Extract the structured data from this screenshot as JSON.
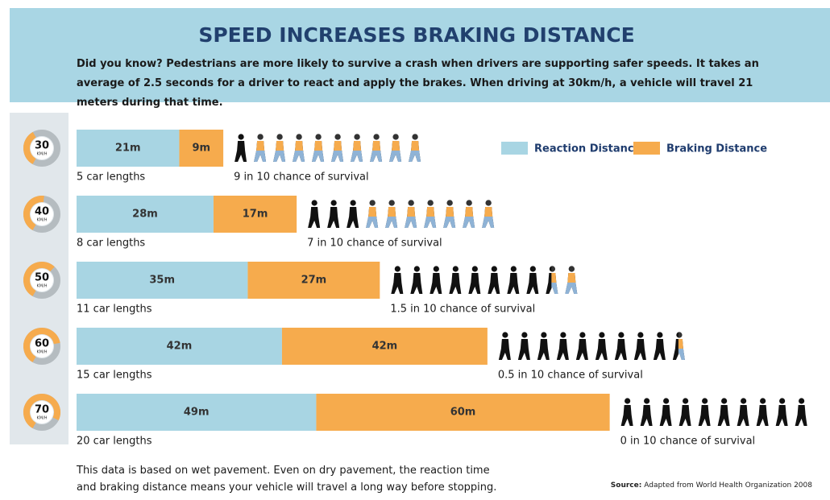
{
  "chart_data": {
    "type": "bar",
    "stacked": true,
    "orientation": "horizontal",
    "title": "SPEED INCREASES BRAKING DISTANCE",
    "subtitle_lead": "Did you know?",
    "subtitle": "Pedestrians are more likely to survive a crash when drivers are supporting safer speeds. It takes an average of 2.5 seconds for a driver to react and apply the brakes. When driving at 30km/h, a vehicle will travel 21 meters during that time.",
    "categories": [
      "30",
      "40",
      "50",
      "60",
      "70"
    ],
    "unit": "KM/H",
    "series": [
      {
        "name": "Reaction Distance",
        "color": "#a8d5e3",
        "values": [
          21,
          28,
          35,
          42,
          49
        ],
        "value_labels": [
          "21m",
          "28m",
          "35m",
          "42m",
          "49m"
        ]
      },
      {
        "name": "Braking Distance",
        "color": "#f6ab4d",
        "values": [
          9,
          17,
          27,
          42,
          60
        ],
        "value_labels": [
          "9m",
          "17m",
          "27m",
          "42m",
          "60m"
        ]
      }
    ],
    "car_lengths": [
      "5 car lengths",
      "8 car lengths",
      "11 car lengths",
      "15 car lengths",
      "20 car lengths"
    ],
    "survival": [
      9,
      7,
      1.5,
      0.5,
      0
    ],
    "survival_labels": [
      "9 in 10 chance of survival",
      "7 in 10 chance of survival",
      "1.5 in 10 chance of survival",
      "0.5 in 10 chance of survival",
      "0 in 10 chance of survival"
    ],
    "footnote": "This data is based on wet pavement. Even on dry pavement, the reaction time and braking distance means your vehicle will travel a long way before stopping.",
    "source_lead": "Source:",
    "source": "Adapted from World Health Organization 2008"
  }
}
